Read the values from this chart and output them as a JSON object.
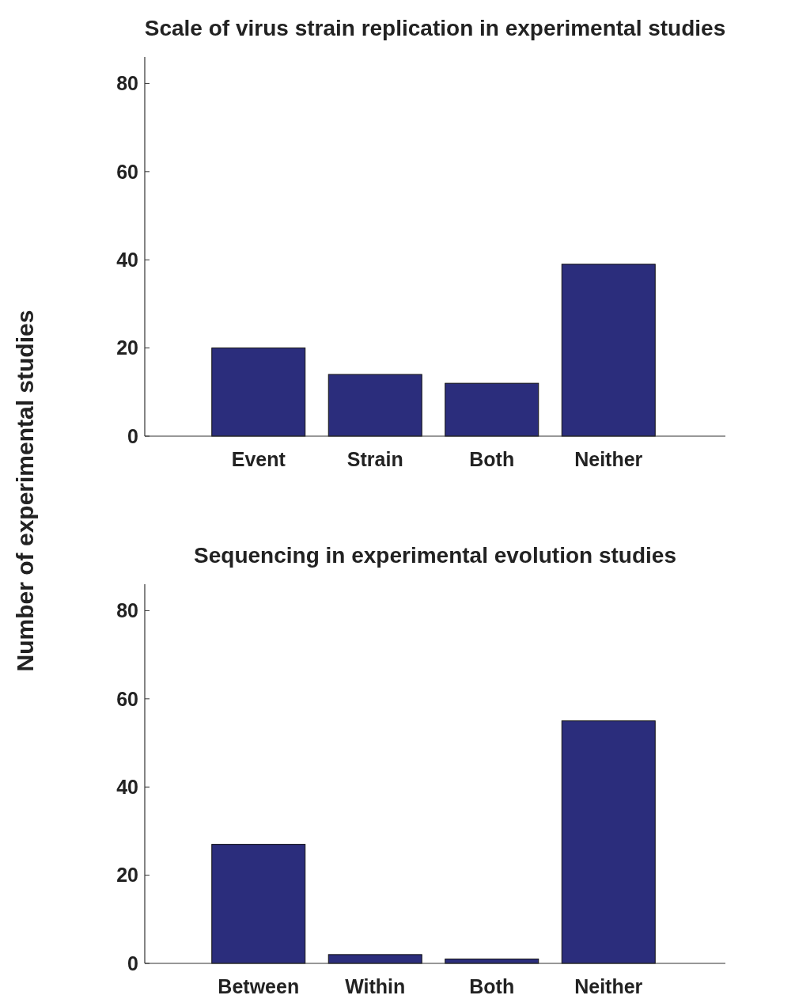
{
  "chart_data": [
    {
      "type": "bar",
      "title": "Scale of virus strain replication in experimental studies",
      "ylabel": "Number of experimental studies",
      "categories": [
        "Event",
        "Strain",
        "Both",
        "Neither"
      ],
      "values": [
        20,
        14,
        12,
        39
      ],
      "color": "#2b2d7c",
      "ylim": [
        0,
        86
      ],
      "yticks": [
        0,
        20,
        40,
        60,
        80
      ],
      "grid": false
    },
    {
      "type": "bar",
      "title": "Sequencing in experimental evolution studies",
      "categories": [
        "Between",
        "Within",
        "Both",
        "Neither"
      ],
      "values": [
        27,
        2,
        1,
        55
      ],
      "color": "#2b2d7c",
      "ylim": [
        0,
        86
      ],
      "yticks": [
        0,
        20,
        40,
        60,
        80
      ],
      "grid": false
    }
  ]
}
